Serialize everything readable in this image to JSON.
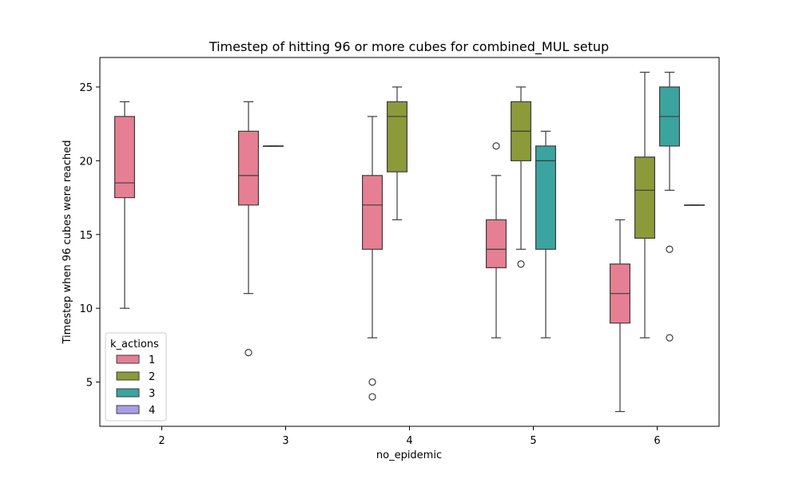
{
  "chart_data": {
    "type": "box",
    "title": "Timestep of hitting 96 or more cubes for combined_MUL setup",
    "xlabel": "no_epidemic",
    "ylabel": "Timestep when 96 cubes were reached",
    "categories": [
      "2",
      "3",
      "4",
      "5",
      "6"
    ],
    "ylim": [
      2,
      27
    ],
    "yticks": [
      5,
      10,
      15,
      20,
      25
    ],
    "grid": false,
    "legend": {
      "title": "k_actions",
      "placement": "lower-left",
      "entries": [
        "1",
        "2",
        "3",
        "4"
      ]
    },
    "series": [
      {
        "name": "1",
        "color": "#e67f93",
        "boxes": [
          {
            "category": "2",
            "whislo": 10,
            "q1": 17.5,
            "med": 18.5,
            "q3": 23,
            "whishi": 24,
            "fliers": []
          },
          {
            "category": "3",
            "whislo": 11,
            "q1": 17,
            "med": 19,
            "q3": 22,
            "whishi": 24,
            "fliers": [
              7
            ]
          },
          {
            "category": "4",
            "whislo": 8,
            "q1": 14,
            "med": 17,
            "q3": 19,
            "whishi": 23,
            "fliers": [
              5,
              4
            ]
          },
          {
            "category": "5",
            "whislo": 8,
            "q1": 12.75,
            "med": 14,
            "q3": 16,
            "whishi": 19,
            "fliers": [
              21
            ]
          },
          {
            "category": "6",
            "whislo": 3,
            "q1": 9,
            "med": 11,
            "q3": 13,
            "whishi": 16,
            "fliers": []
          }
        ]
      },
      {
        "name": "2",
        "color": "#8c9a3a",
        "boxes": [
          {
            "category": "3",
            "whislo": 21,
            "q1": 21,
            "med": 21,
            "q3": 21,
            "whishi": 21,
            "fliers": []
          },
          {
            "category": "4",
            "whislo": 16,
            "q1": 19.25,
            "med": 23,
            "q3": 24,
            "whishi": 25,
            "fliers": []
          },
          {
            "category": "5",
            "whislo": 14,
            "q1": 20,
            "med": 22,
            "q3": 24,
            "whishi": 25,
            "fliers": [
              13
            ]
          },
          {
            "category": "6",
            "whislo": 8,
            "q1": 14.75,
            "med": 18,
            "q3": 20.25,
            "whishi": 26,
            "fliers": []
          }
        ]
      },
      {
        "name": "3",
        "color": "#3ba3a0",
        "boxes": [
          {
            "category": "5",
            "whislo": 8,
            "q1": 14,
            "med": 20,
            "q3": 21,
            "whishi": 22,
            "fliers": []
          },
          {
            "category": "6",
            "whislo": 18,
            "q1": 21,
            "med": 23,
            "q3": 25,
            "whishi": 26,
            "fliers": [
              14,
              8
            ]
          }
        ]
      },
      {
        "name": "4",
        "color": "#a99ee6",
        "boxes": [
          {
            "category": "6",
            "whislo": 17,
            "q1": 17,
            "med": 17,
            "q3": 17,
            "whishi": 17,
            "fliers": []
          }
        ]
      }
    ]
  }
}
